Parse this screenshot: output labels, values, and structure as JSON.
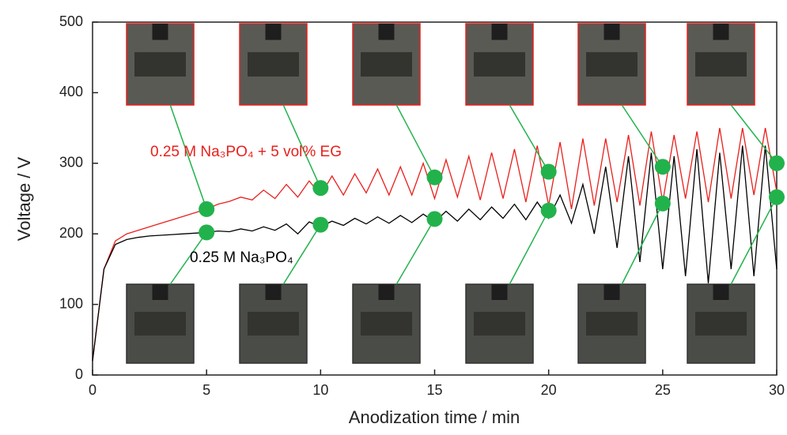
{
  "chart_data": {
    "type": "line",
    "xlabel": "Anodization time / min",
    "ylabel": "Voltage / V",
    "xlim": [
      0,
      30
    ],
    "xticks": [
      0,
      5,
      10,
      15,
      20,
      25,
      30
    ],
    "ylim": [
      0,
      500
    ],
    "yticks": [
      0,
      100,
      200,
      300,
      400,
      500
    ],
    "marker_color": "#22b24c",
    "x": [
      0,
      0.5,
      1,
      1.5,
      2,
      2.5,
      3,
      3.5,
      4,
      4.5,
      5,
      5.5,
      6,
      6.5,
      7,
      7.5,
      8,
      8.5,
      9,
      9.5,
      10,
      10.5,
      11,
      11.5,
      12,
      12.5,
      13,
      13.5,
      14,
      14.5,
      15,
      15.5,
      16,
      16.5,
      17,
      17.5,
      18,
      18.5,
      19,
      19.5,
      20,
      20.5,
      21,
      21.5,
      22,
      22.5,
      23,
      23.5,
      24,
      24.5,
      25,
      25.5,
      26,
      26.5,
      27,
      27.5,
      28,
      28.5,
      29,
      29.5,
      30
    ],
    "series": [
      {
        "name": "0.25 M Na₃PO₄ + 5 vol% EG",
        "color": "#e8201c",
        "values": [
          20,
          150,
          190,
          200,
          205,
          210,
          215,
          220,
          225,
          230,
          235,
          242,
          246,
          252,
          248,
          262,
          250,
          270,
          252,
          275,
          255,
          282,
          255,
          285,
          258,
          292,
          255,
          295,
          255,
          300,
          250,
          305,
          252,
          310,
          248,
          315,
          250,
          320,
          245,
          325,
          240,
          330,
          235,
          335,
          240,
          335,
          245,
          340,
          240,
          345,
          245,
          340,
          250,
          345,
          245,
          350,
          250,
          350,
          255,
          350,
          260
        ],
        "markers": {
          "x": [
            5,
            10,
            15,
            20,
            25,
            30
          ],
          "values": [
            235,
            265,
            280,
            288,
            295,
            300
          ]
        }
      },
      {
        "name": "0.25 M Na₃PO₄",
        "color": "#000000",
        "values": [
          20,
          150,
          185,
          192,
          195,
          197,
          198,
          199,
          200,
          201,
          202,
          204,
          203,
          207,
          204,
          210,
          205,
          214,
          200,
          217,
          210,
          218,
          212,
          222,
          214,
          224,
          215,
          226,
          216,
          228,
          217,
          232,
          218,
          235,
          220,
          238,
          222,
          242,
          220,
          245,
          222,
          255,
          215,
          270,
          200,
          295,
          180,
          310,
          160,
          315,
          150,
          310,
          140,
          320,
          130,
          315,
          150,
          325,
          140,
          325,
          150
        ],
        "markers": {
          "x": [
            5,
            10,
            15,
            20,
            25,
            30
          ],
          "values": [
            202,
            213,
            221,
            233,
            243,
            252
          ]
        }
      }
    ]
  }
}
